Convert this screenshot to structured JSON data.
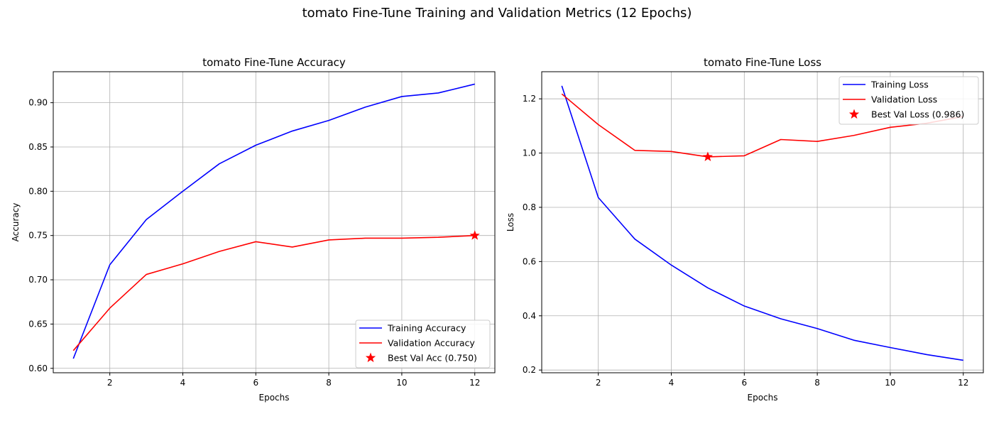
{
  "figure": {
    "suptitle": "tomato Fine-Tune Training and Validation Metrics (12 Epochs)"
  },
  "chart_data": [
    {
      "type": "line",
      "title": "tomato Fine-Tune Accuracy",
      "xlabel": "Epochs",
      "ylabel": "Accuracy",
      "xlim": [
        0.45,
        12.55
      ],
      "ylim": [
        0.595,
        0.935
      ],
      "x_ticks": [
        2,
        4,
        6,
        8,
        10,
        12
      ],
      "y_ticks": [
        0.6,
        0.65,
        0.7,
        0.75,
        0.8,
        0.85,
        0.9
      ],
      "y_tick_labels": [
        "0.60",
        "0.65",
        "0.70",
        "0.75",
        "0.80",
        "0.85",
        "0.90"
      ],
      "grid": true,
      "legend_position": "lower-right",
      "x": [
        1,
        2,
        3,
        4,
        5,
        6,
        7,
        8,
        9,
        10,
        11,
        12
      ],
      "series": [
        {
          "name": "Training Accuracy",
          "color": "#0000ff",
          "values": [
            0.611,
            0.717,
            0.768,
            0.8,
            0.831,
            0.852,
            0.868,
            0.88,
            0.895,
            0.907,
            0.911,
            0.921
          ]
        },
        {
          "name": "Validation Accuracy",
          "color": "#ff0000",
          "values": [
            0.62,
            0.668,
            0.706,
            0.718,
            0.732,
            0.743,
            0.737,
            0.745,
            0.747,
            0.747,
            0.748,
            0.75
          ]
        }
      ],
      "marker": {
        "name": "Best Val Acc (0.750)",
        "color": "#ff0000",
        "x": 12,
        "y": 0.75
      }
    },
    {
      "type": "line",
      "title": "tomato Fine-Tune Loss",
      "xlabel": "Epochs",
      "ylabel": "Loss",
      "xlim": [
        0.45,
        12.55
      ],
      "ylim": [
        0.19,
        1.3
      ],
      "x_ticks": [
        2,
        4,
        6,
        8,
        10,
        12
      ],
      "y_ticks": [
        0.2,
        0.4,
        0.6,
        0.8,
        1.0,
        1.2
      ],
      "y_tick_labels": [
        "0.2",
        "0.4",
        "0.6",
        "0.8",
        "1.0",
        "1.2"
      ],
      "grid": true,
      "legend_position": "upper-right",
      "x": [
        1,
        2,
        3,
        4,
        5,
        6,
        7,
        8,
        9,
        10,
        11,
        12
      ],
      "series": [
        {
          "name": "Training Loss",
          "color": "#0000ff",
          "values": [
            1.248,
            0.836,
            0.683,
            0.587,
            0.503,
            0.436,
            0.389,
            0.353,
            0.31,
            0.283,
            0.257,
            0.236
          ]
        },
        {
          "name": "Validation Loss",
          "color": "#ff0000",
          "values": [
            1.218,
            1.105,
            1.01,
            1.006,
            0.986,
            0.99,
            1.05,
            1.043,
            1.065,
            1.095,
            1.11,
            1.135
          ]
        }
      ],
      "marker": {
        "name": "Best Val Loss (0.986)",
        "color": "#ff0000",
        "x": 5,
        "y": 0.986
      }
    }
  ]
}
